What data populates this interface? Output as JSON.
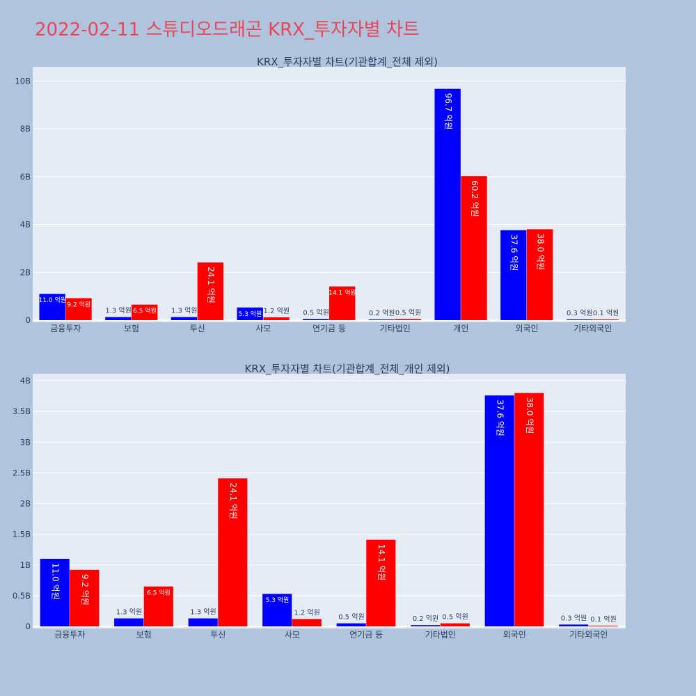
{
  "page": {
    "title": "2022-02-11 스튜디오드래곤 KRX_투자자별 차트",
    "background": "#b0c4de",
    "plot_background": "#e5ecf6",
    "title_color": "#e8475a"
  },
  "chart_data": [
    {
      "type": "bar",
      "title": "KRX_투자자별 차트(기관합계_전체 제외)",
      "categories": [
        "금융투자",
        "보험",
        "투신",
        "사모",
        "연기금 등",
        "기타법인",
        "개인",
        "외국인",
        "기타외국인"
      ],
      "series": [
        {
          "color": "#0000ff",
          "values": [
            1100000000,
            130000000,
            130000000,
            530000000,
            50000000,
            20000000,
            9670000000,
            3760000000,
            30000000
          ],
          "labels": [
            "11.0 억원",
            "1.3 억원",
            "1.3 억원",
            "5.3 억원",
            "0.5 억원",
            "0.2 억원",
            "96.7 억원",
            "37.6 억원",
            "0.3 억원"
          ]
        },
        {
          "color": "#ff0000",
          "values": [
            920000000,
            650000000,
            2410000000,
            120000000,
            1410000000,
            50000000,
            6020000000,
            3800000000,
            10000000
          ],
          "labels": [
            "9.2 억원",
            "6.5 억원",
            "24.1 억원",
            "1.2 억원",
            "14.1 억원",
            "0.5 억원",
            "60.2 억원",
            "38.0 억원",
            "0.1 억원"
          ]
        }
      ],
      "yticks": [
        0,
        2000000000,
        4000000000,
        6000000000,
        8000000000,
        10000000000
      ],
      "yticklabels": [
        "0",
        "2B",
        "4B",
        "6B",
        "8B",
        "10B"
      ],
      "ylim": [
        0,
        10300000000
      ],
      "grid": true,
      "legend": "none"
    },
    {
      "type": "bar",
      "title": "KRX_투자자별 차트(기관합계_전체_개인 제외)",
      "categories": [
        "금융투자",
        "보험",
        "투신",
        "사모",
        "연기금 등",
        "기타법인",
        "외국인",
        "기타외국인"
      ],
      "series": [
        {
          "color": "#0000ff",
          "values": [
            1100000000,
            130000000,
            130000000,
            530000000,
            50000000,
            20000000,
            3760000000,
            30000000
          ],
          "labels": [
            "11.0 억원",
            "1.3 억원",
            "1.3 억원",
            "5.3 억원",
            "0.5 억원",
            "0.2 억원",
            "37.6 억원",
            "0.3 억원"
          ]
        },
        {
          "color": "#ff0000",
          "values": [
            920000000,
            650000000,
            2410000000,
            120000000,
            1410000000,
            50000000,
            3800000000,
            10000000
          ],
          "labels": [
            "9.2 억원",
            "6.5 억원",
            "24.1 억원",
            "1.2 억원",
            "14.1 억원",
            "0.5 억원",
            "38.0 억원",
            "0.1 억원"
          ]
        }
      ],
      "yticks": [
        0,
        500000000,
        1000000000,
        1500000000,
        2000000000,
        2500000000,
        3000000000,
        3500000000,
        4000000000
      ],
      "yticklabels": [
        "0",
        "0.5B",
        "1B",
        "1.5B",
        "2B",
        "2.5B",
        "3B",
        "3.5B",
        "4B"
      ],
      "ylim": [
        0,
        4000000000
      ],
      "grid": true,
      "legend": "none"
    }
  ]
}
